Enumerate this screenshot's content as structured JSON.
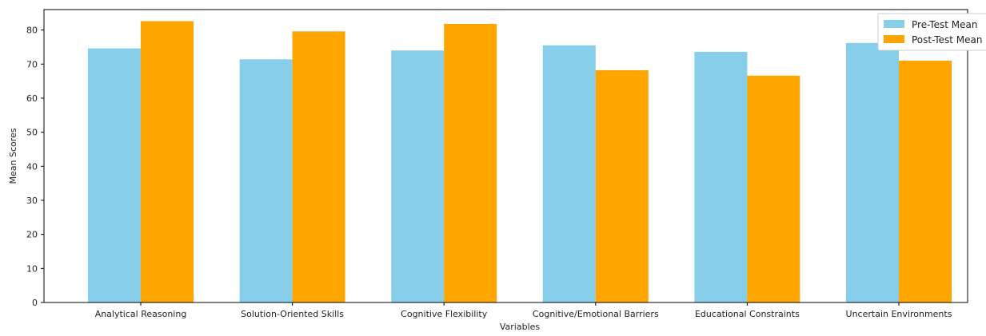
{
  "chart_data": {
    "type": "bar",
    "title": "",
    "xlabel": "Variables",
    "ylabel": "Mean Scores",
    "categories": [
      "Analytical Reasoning",
      "Solution-Oriented Skills",
      "Cognitive Flexibility",
      "Cognitive/Emotional Barriers",
      "Educational Constraints",
      "Uncertain Environments"
    ],
    "series": [
      {
        "name": "Pre-Test Mean",
        "color": "#87CEEB",
        "values": [
          74.6,
          71.4,
          74.0,
          75.5,
          73.6,
          76.2
        ]
      },
      {
        "name": "Post-Test Mean",
        "color": "#FFA500",
        "values": [
          82.6,
          79.6,
          81.8,
          68.2,
          66.6,
          71.0
        ]
      }
    ],
    "ylim": [
      0,
      86
    ],
    "yticks": [
      0,
      10,
      20,
      30,
      40,
      50,
      60,
      70,
      80
    ],
    "grid": false,
    "legend_position": "top-right"
  }
}
